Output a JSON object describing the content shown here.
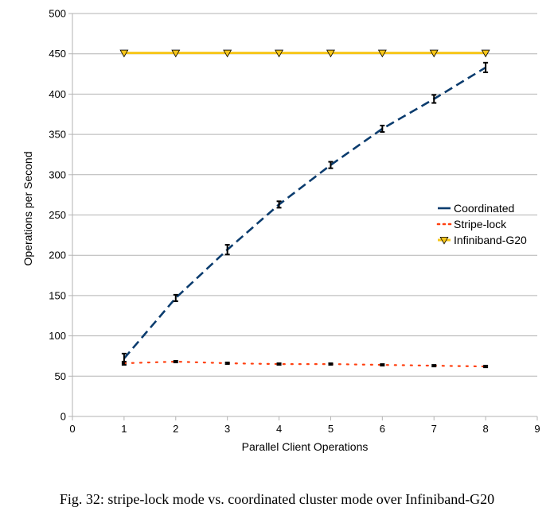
{
  "caption": "Fig. 32: stripe-lock mode vs. coordinated cluster mode over Infiniband-G20",
  "chart_data": {
    "type": "line",
    "title": "",
    "xlabel": "Parallel Client Operations",
    "ylabel": "Operations per Second",
    "xlim": [
      0,
      9
    ],
    "ylim": [
      0,
      500
    ],
    "xticks": [
      0,
      1,
      2,
      3,
      4,
      5,
      6,
      7,
      8,
      9
    ],
    "yticks": [
      0,
      50,
      100,
      150,
      200,
      250,
      300,
      350,
      400,
      450,
      500
    ],
    "grid": "horizontal",
    "legend_position": "right",
    "series": [
      {
        "name": "Coordinated",
        "color": "#0b3c6e",
        "line_style": "dashed",
        "x": [
          1,
          2,
          3,
          4,
          5,
          6,
          7,
          8
        ],
        "y": [
          72,
          147,
          207,
          263,
          312,
          357,
          394,
          433
        ],
        "error": [
          6,
          4,
          6,
          4,
          4,
          4,
          5,
          6
        ]
      },
      {
        "name": "Stripe-lock",
        "color": "#ff4010",
        "line_style": "dotted",
        "x": [
          1,
          2,
          3,
          4,
          5,
          6,
          7,
          8
        ],
        "y": [
          66,
          68,
          66,
          65,
          65,
          64,
          63,
          62
        ],
        "error": [
          2,
          1,
          1,
          1,
          1,
          1,
          1,
          1
        ]
      },
      {
        "name": "Infiniband-G20",
        "color": "#f7c61a",
        "line_style": "solid",
        "marker": "triangle-down",
        "x": [
          1,
          2,
          3,
          4,
          5,
          6,
          7,
          8
        ],
        "y": [
          451,
          451,
          451,
          451,
          451,
          451,
          451,
          451
        ]
      }
    ]
  }
}
